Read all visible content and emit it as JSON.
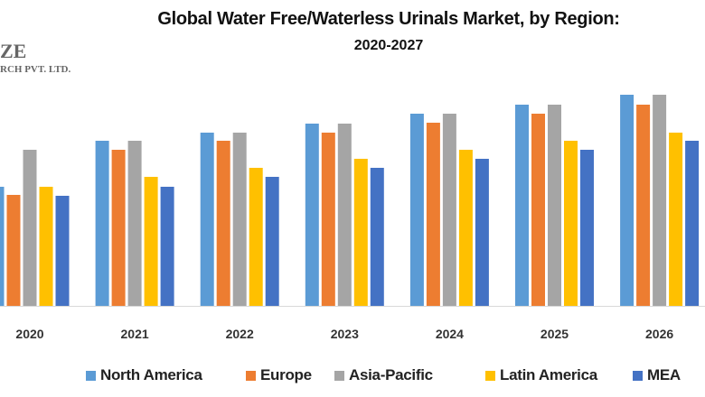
{
  "logo": {
    "line1": "ZE",
    "line2": "RCH PVT. LTD."
  },
  "chart_data": {
    "type": "bar",
    "title": "Global Water Free/Waterless Urinals Market, by Region:",
    "subtitle": "2020-2027",
    "xlabel": "",
    "ylabel": "",
    "categories": [
      "2020",
      "2021",
      "2022",
      "2023",
      "2024",
      "2025",
      "2026"
    ],
    "ylim": [
      0,
      24
    ],
    "grid": false,
    "legend_position": "bottom",
    "series": [
      {
        "name": "North America",
        "color": "#5B9BD5",
        "values": [
          13.2,
          18.3,
          19.2,
          20.2,
          21.3,
          22.3,
          23.4
        ]
      },
      {
        "name": "Europe",
        "color": "#ED7D31",
        "values": [
          12.3,
          17.3,
          18.3,
          19.2,
          20.3,
          21.3,
          22.3
        ]
      },
      {
        "name": "Asia-Pacific",
        "color": "#A5A5A5",
        "values": [
          17.3,
          18.3,
          19.2,
          20.2,
          21.3,
          22.3,
          23.4
        ]
      },
      {
        "name": "Latin America",
        "color": "#FFC000",
        "values": [
          13.2,
          14.3,
          15.3,
          16.3,
          17.3,
          18.3,
          19.2
        ]
      },
      {
        "name": "MEA",
        "color": "#4472C4",
        "values": [
          12.2,
          13.2,
          14.3,
          15.3,
          16.3,
          17.3,
          18.3
        ]
      }
    ]
  }
}
